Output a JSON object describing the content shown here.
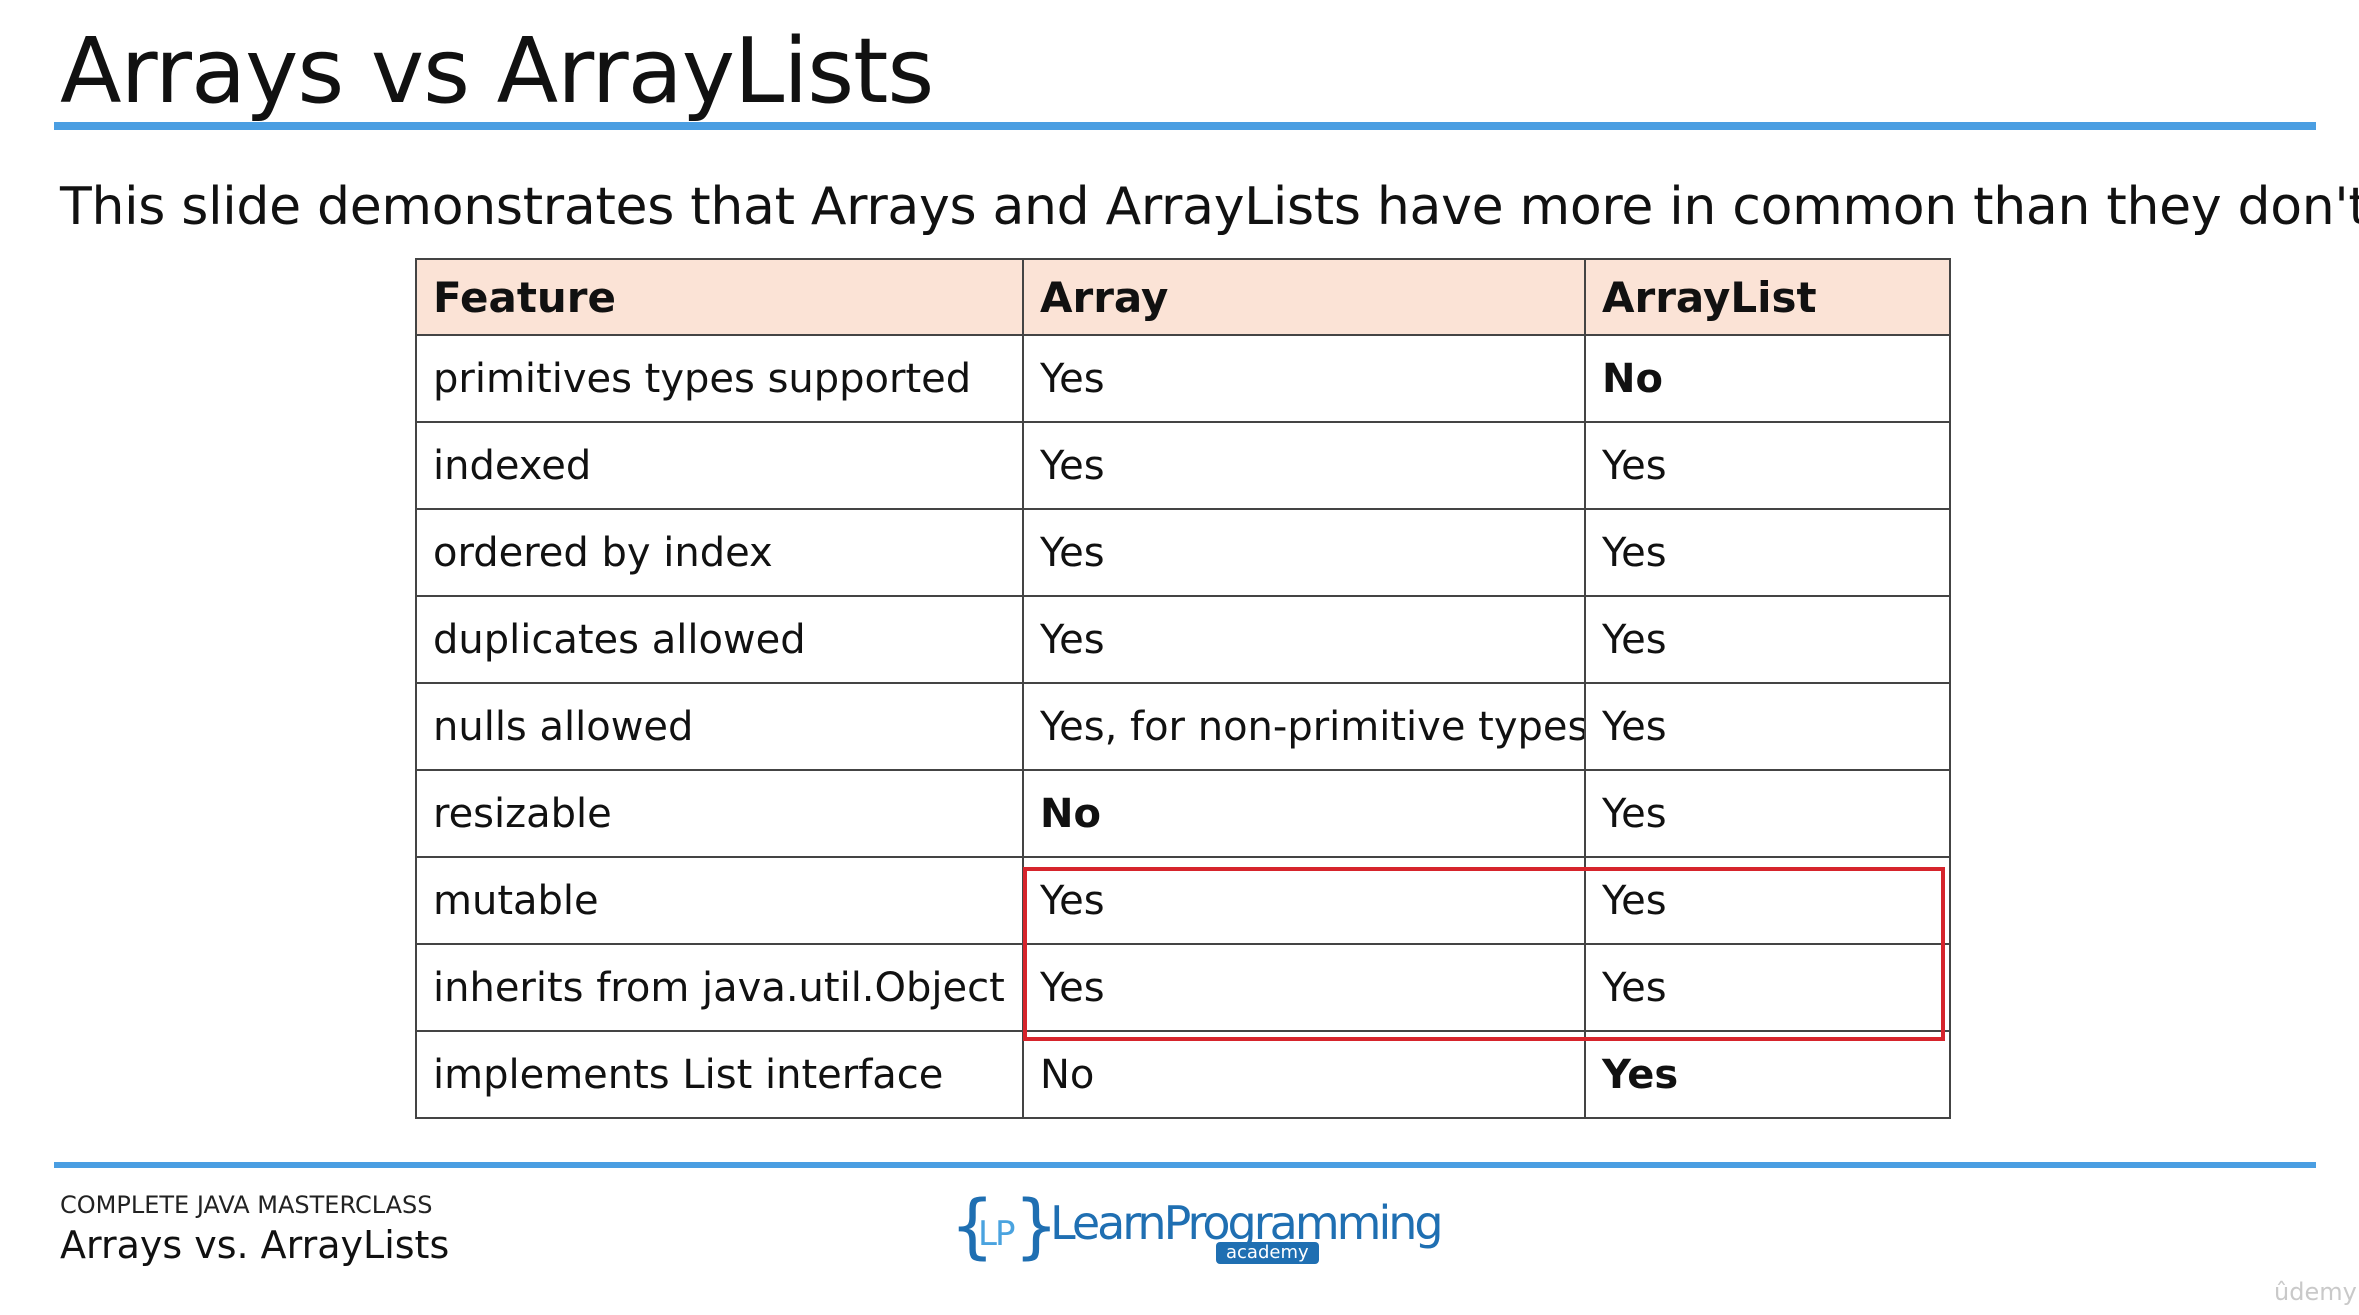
{
  "slide": {
    "title": "Arrays vs ArrayLists",
    "subtitle": "This slide demonstrates that Arrays and ArrayLists have more in common than they don't."
  },
  "table": {
    "headers": [
      "Feature",
      "Array",
      "ArrayList"
    ],
    "rows": [
      {
        "feature": "primitives types supported",
        "array": "Yes",
        "arraylist": "No",
        "array_bold": false,
        "arraylist_bold": true
      },
      {
        "feature": "indexed",
        "array": "Yes",
        "arraylist": "Yes",
        "array_bold": false,
        "arraylist_bold": false
      },
      {
        "feature": "ordered by index",
        "array": "Yes",
        "arraylist": "Yes",
        "array_bold": false,
        "arraylist_bold": false
      },
      {
        "feature": "duplicates allowed",
        "array": "Yes",
        "arraylist": "Yes",
        "array_bold": false,
        "arraylist_bold": false
      },
      {
        "feature": "nulls allowed",
        "array": "Yes, for non-primitive types",
        "arraylist": "Yes",
        "array_bold": false,
        "arraylist_bold": false
      },
      {
        "feature": "resizable",
        "array": "No",
        "arraylist": "Yes",
        "array_bold": true,
        "arraylist_bold": false
      },
      {
        "feature": "mutable",
        "array": "Yes",
        "arraylist": "Yes",
        "array_bold": false,
        "arraylist_bold": false
      },
      {
        "feature": "inherits from java.util.Object",
        "array": "Yes",
        "arraylist": "Yes",
        "array_bold": false,
        "arraylist_bold": false
      },
      {
        "feature": "implements List interface",
        "array": "No",
        "arraylist": "Yes",
        "array_bold": false,
        "arraylist_bold": true
      }
    ],
    "highlight_color": "#d6242c",
    "header_bg": "#fbe3d6"
  },
  "footer": {
    "course": "COMPLETE JAVA MASTERCLASS",
    "lecture": "Arrays vs. ArrayLists",
    "logo_brand": "LearnProgramming",
    "logo_sub": "academy",
    "logo_initials": "LP",
    "watermark": "ûdemy"
  },
  "colors": {
    "accent": "#4a9ee2"
  }
}
